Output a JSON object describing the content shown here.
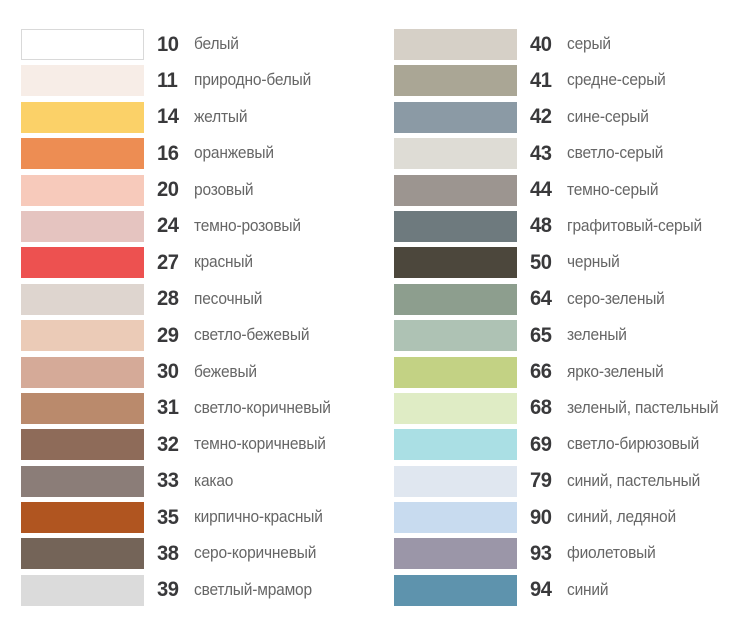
{
  "chart_data": {
    "type": "table",
    "title": "",
    "columns_meta": [
      "code",
      "name",
      "swatch_color"
    ],
    "rows": [
      [
        "10",
        "белый",
        "#ffffff"
      ],
      [
        "11",
        "природно-белый",
        "#f7ede7"
      ],
      [
        "14",
        "желтый",
        "#fbd168"
      ],
      [
        "16",
        "оранжевый",
        "#ed8d53"
      ],
      [
        "20",
        "розовый",
        "#f7cabb"
      ],
      [
        "24",
        "темно-розовый",
        "#e5c4c0"
      ],
      [
        "27",
        "красный",
        "#ed5150"
      ],
      [
        "28",
        "песочный",
        "#ded5cf"
      ],
      [
        "29",
        "светло-бежевый",
        "#ebcbb7"
      ],
      [
        "30",
        "бежевый",
        "#d5aa98"
      ],
      [
        "31",
        "светло-коричневый",
        "#ba8a6c"
      ],
      [
        "32",
        "темно-коричневый",
        "#8e6b59"
      ],
      [
        "33",
        "какао",
        "#8b7d78"
      ],
      [
        "35",
        "кирпично-красный",
        "#b05520"
      ],
      [
        "38",
        "серо-коричневый",
        "#746458"
      ],
      [
        "39",
        "светлый-мрамор",
        "#dbdbdb"
      ],
      [
        "40",
        "серый",
        "#d6d0c7"
      ],
      [
        "41",
        "средне-серый",
        "#aaa695"
      ],
      [
        "42",
        "сине-серый",
        "#8b9aa5"
      ],
      [
        "43",
        "светло-серый",
        "#dedcd5"
      ],
      [
        "44",
        "темно-серый",
        "#9c9590"
      ],
      [
        "48",
        "графитовый-серый",
        "#6e7a7e"
      ],
      [
        "50",
        "черный",
        "#4c473c"
      ],
      [
        "64",
        "серо-зеленый",
        "#8d9e8e"
      ],
      [
        "65",
        "зеленый",
        "#aec2b4"
      ],
      [
        "66",
        "ярко-зеленый",
        "#c3d284"
      ],
      [
        "68",
        "зеленый, пастельный",
        "#dfecc5"
      ],
      [
        "69",
        "светло-бирюзовый",
        "#aadfe4"
      ],
      [
        "79",
        "синий, пастельный",
        "#e0e7f0"
      ],
      [
        "90",
        "синий, ледяной",
        "#c8dbef"
      ],
      [
        "93",
        "фиолетовый",
        "#9b96a8"
      ],
      [
        "94",
        "синий",
        "#5e93ad"
      ]
    ]
  },
  "palette": {
    "columns": [
      {
        "items": [
          {
            "code": "10",
            "name": "белый",
            "color": "#ffffff",
            "border": "#d9d9d9"
          },
          {
            "code": "11",
            "name": "природно-белый",
            "color": "#f7ede7"
          },
          {
            "code": "14",
            "name": "желтый",
            "color": "#fbd168"
          },
          {
            "code": "16",
            "name": "оранжевый",
            "color": "#ed8d53"
          },
          {
            "code": "20",
            "name": "розовый",
            "color": "#f7cabb"
          },
          {
            "code": "24",
            "name": "темно-розовый",
            "color": "#e5c4c0"
          },
          {
            "code": "27",
            "name": "красный",
            "color": "#ed5150"
          },
          {
            "code": "28",
            "name": "песочный",
            "color": "#ded5cf"
          },
          {
            "code": "29",
            "name": "светло-бежевый",
            "color": "#ebcbb7"
          },
          {
            "code": "30",
            "name": "бежевый",
            "color": "#d5aa98"
          },
          {
            "code": "31",
            "name": "светло-коричневый",
            "color": "#ba8a6c"
          },
          {
            "code": "32",
            "name": "темно-коричневый",
            "color": "#8e6b59"
          },
          {
            "code": "33",
            "name": "какао",
            "color": "#8b7d78"
          },
          {
            "code": "35",
            "name": "кирпично-красный",
            "color": "#b05520"
          },
          {
            "code": "38",
            "name": "серо-коричневый",
            "color": "#746458"
          },
          {
            "code": "39",
            "name": "светлый-мрамор",
            "color": "#dbdbdb"
          }
        ]
      },
      {
        "items": [
          {
            "code": "40",
            "name": "серый",
            "color": "#d6d0c7"
          },
          {
            "code": "41",
            "name": "средне-серый",
            "color": "#aaa695"
          },
          {
            "code": "42",
            "name": "сине-серый",
            "color": "#8b9aa5"
          },
          {
            "code": "43",
            "name": "светло-серый",
            "color": "#dedcd5"
          },
          {
            "code": "44",
            "name": "темно-серый",
            "color": "#9c9590"
          },
          {
            "code": "48",
            "name": "графитовый-серый",
            "color": "#6e7a7e"
          },
          {
            "code": "50",
            "name": "черный",
            "color": "#4c473c"
          },
          {
            "code": "64",
            "name": "серо-зеленый",
            "color": "#8d9e8e"
          },
          {
            "code": "65",
            "name": "зеленый",
            "color": "#aec2b4"
          },
          {
            "code": "66",
            "name": "ярко-зеленый",
            "color": "#c3d284"
          },
          {
            "code": "68",
            "name": "зеленый, пастельный",
            "color": "#dfecc5"
          },
          {
            "code": "69",
            "name": "светло-бирюзовый",
            "color": "#aadfe4"
          },
          {
            "code": "79",
            "name": "синий, пастельный",
            "color": "#e0e7f0"
          },
          {
            "code": "90",
            "name": "синий, ледяной",
            "color": "#c8dbef"
          },
          {
            "code": "93",
            "name": "фиолетовый",
            "color": "#9b96a8"
          },
          {
            "code": "94",
            "name": "синий",
            "color": "#5e93ad"
          }
        ]
      }
    ]
  },
  "styles": {
    "background": "#ffffff",
    "code_text_color": "#39393b",
    "label_text_color": "#666666",
    "white_swatch_border": "#d9d9d9"
  }
}
